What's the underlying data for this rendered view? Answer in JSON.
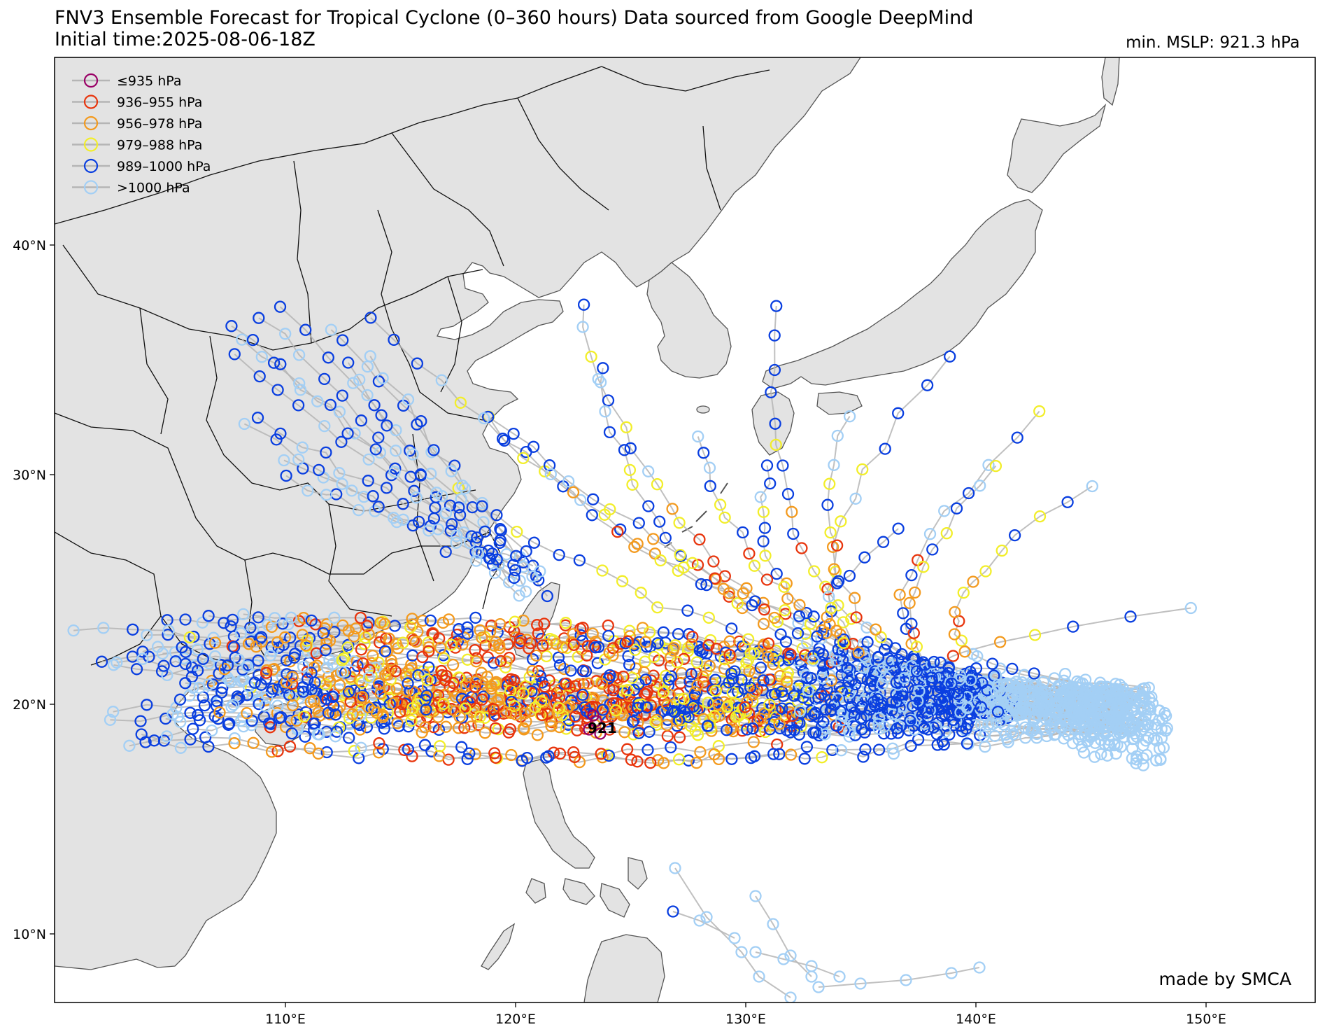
{
  "header": {
    "title_line1": "FNV3 Ensemble Forecast for Tropical Cyclone (0–360 hours) Data sourced from Google DeepMind",
    "title_line2": "Initial time:2025-08-06-18Z",
    "min_mslp": "min. MSLP: 921.3 hPa"
  },
  "legend": {
    "items": [
      {
        "label": "≤935 hPa",
        "color": "#990066"
      },
      {
        "label": "936–955 hPa",
        "color": "#e8350d"
      },
      {
        "label": "956–978 hPa",
        "color": "#f39a1e"
      },
      {
        "label": "979–988 hPa",
        "color": "#f2ee2a"
      },
      {
        "label": "989–1000 hPa",
        "color": "#0a3fe0"
      },
      {
        "label": ">1000 hPa",
        "color": "#a3cff5"
      }
    ]
  },
  "axes": {
    "lat_labels": [
      "40°N",
      "30°N",
      "20°N",
      "10°N"
    ],
    "lon_labels": [
      "110°E",
      "120°E",
      "130°E",
      "140°E",
      "150°E"
    ]
  },
  "annotation": {
    "min_label": "921"
  },
  "credit": "made by SMCA",
  "colors": {
    "land": "#e3e3e3",
    "ocean": "#ffffff",
    "track": "#b5b5b5",
    "coast": "#555555",
    "border": "#111111"
  }
}
